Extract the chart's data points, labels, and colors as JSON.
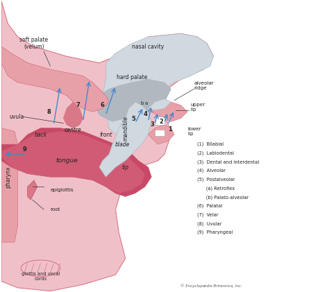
{
  "title": "",
  "background_color": "#ffffff",
  "fig_width": 4.74,
  "fig_height": 4.21,
  "dpi": 100,
  "legend_items": [
    "(1)  Bilabial",
    "(2)  Labiodental",
    "(3)  Dental and interdental",
    "(4)  Alveolar",
    "(5)  Postalveolar",
    "      (a) Retroflex",
    "      (b) Palato-alveolar",
    "(6)  Palatal",
    "(7)  Velar",
    "(8)  Uvular",
    "(9)  Pharyngeal"
  ],
  "copyright": "© Encyclopædia Britannica, Inc.",
  "labels": {
    "soft_palate": "soft palate\n(velum)",
    "nasal_cavity": "nasal cavity",
    "hard_palate": "hard palate",
    "alveolar_ridge": "alveolar\nridge",
    "upper_lip": "upper\nlip",
    "lower_lip": "lower\nlip",
    "back": "back",
    "centre": "centre",
    "front": "front",
    "blade": "blade",
    "tip": "tip",
    "tongue": "tongue",
    "uvula": "uvula",
    "pharynx": "pharynx",
    "epiglottis": "epiglottis",
    "root": "root",
    "mandible": "mandible",
    "glottis": "glottis and vocal\ncords"
  },
  "colors": {
    "outer_skin": "#e8a0a8",
    "light_pink": "#f0c0c8",
    "medium_pink": "#d87888",
    "dark_pink": "#c05868",
    "tongue_dark": "#c84868",
    "tongue_light": "#e07888",
    "gray_palate": "#b0b8c0",
    "light_gray": "#d0d8e0",
    "arrow_blue": "#4488cc",
    "text_dark": "#222222",
    "white": "#ffffff"
  }
}
